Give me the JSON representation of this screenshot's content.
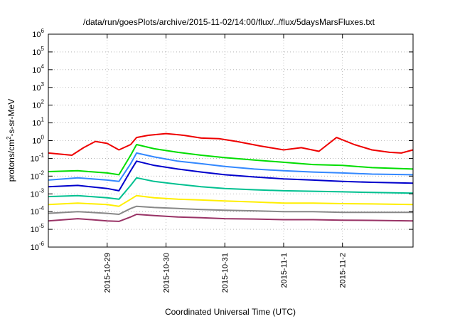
{
  "chart_data": {
    "type": "line",
    "title": "/data/run/goesPlots/archive/2015-11-02/14:00/flux/../flux/5daysMarsFluxes.txt",
    "xlabel": "Coordinated Universal Time (UTC)",
    "ylabel": "protons/cm2-s-sr-MeV",
    "ylabel_parts": {
      "pre": "protons/cm",
      "sup": "2",
      "post": "-s-sr-MeV"
    },
    "yscale": "log",
    "ylim": [
      1e-06,
      1000000.0
    ],
    "xlim_days": [
      0,
      6.2
    ],
    "y_ticks": [
      {
        "base": "10",
        "exp": "-6",
        "value": 1e-06
      },
      {
        "base": "10",
        "exp": "-5",
        "value": 1e-05
      },
      {
        "base": "10",
        "exp": "-4",
        "value": 0.0001
      },
      {
        "base": "10",
        "exp": "-3",
        "value": 0.001
      },
      {
        "base": "10",
        "exp": "-2",
        "value": 0.01
      },
      {
        "base": "10",
        "exp": "-1",
        "value": 0.1
      },
      {
        "base": "10",
        "exp": "0",
        "value": 1
      },
      {
        "base": "10",
        "exp": "1",
        "value": 10
      },
      {
        "base": "10",
        "exp": "2",
        "value": 100
      },
      {
        "base": "10",
        "exp": "3",
        "value": 1000
      },
      {
        "base": "10",
        "exp": "4",
        "value": 10000
      },
      {
        "base": "10",
        "exp": "5",
        "value": 100000
      },
      {
        "base": "10",
        "exp": "6",
        "value": 1000000
      }
    ],
    "x_ticks": [
      {
        "label": "2015-10-29",
        "day": 1.0
      },
      {
        "label": "2015-10-30",
        "day": 2.0
      },
      {
        "label": "2015-10-31",
        "day": 3.0
      },
      {
        "label": "2015-11-1",
        "day": 4.0
      },
      {
        "label": "2015-11-2",
        "day": 5.0
      }
    ],
    "grid": true,
    "series": [
      {
        "color": "#ee0000",
        "x": [
          0,
          0.4,
          0.6,
          0.8,
          1.0,
          1.2,
          1.4,
          1.5,
          1.7,
          2.0,
          2.3,
          2.6,
          2.9,
          3.2,
          3.6,
          4.0,
          4.3,
          4.6,
          4.9,
          5.2,
          5.5,
          5.8,
          6.0,
          6.2
        ],
        "y": [
          0.2,
          0.15,
          0.4,
          0.9,
          0.7,
          0.3,
          0.6,
          1.5,
          2.0,
          2.5,
          2.0,
          1.4,
          1.3,
          0.9,
          0.5,
          0.3,
          0.4,
          0.25,
          1.5,
          0.6,
          0.3,
          0.22,
          0.2,
          0.3
        ]
      },
      {
        "color": "#00dd00",
        "x": [
          0,
          0.5,
          1.0,
          1.2,
          1.4,
          1.5,
          1.8,
          2.2,
          2.6,
          3.0,
          3.5,
          4.0,
          4.5,
          5.0,
          5.5,
          6.2
        ],
        "y": [
          0.018,
          0.02,
          0.015,
          0.012,
          0.15,
          0.6,
          0.35,
          0.22,
          0.15,
          0.11,
          0.08,
          0.06,
          0.045,
          0.04,
          0.03,
          0.025
        ]
      },
      {
        "color": "#3388ff",
        "x": [
          0,
          0.5,
          1.0,
          1.2,
          1.4,
          1.5,
          1.8,
          2.2,
          2.6,
          3.0,
          3.5,
          4.0,
          4.5,
          5.0,
          5.5,
          6.2
        ],
        "y": [
          0.006,
          0.008,
          0.006,
          0.005,
          0.05,
          0.2,
          0.12,
          0.07,
          0.05,
          0.035,
          0.025,
          0.02,
          0.017,
          0.015,
          0.013,
          0.012
        ]
      },
      {
        "color": "#0000cc",
        "x": [
          0,
          0.5,
          1.0,
          1.2,
          1.4,
          1.5,
          1.8,
          2.2,
          2.6,
          3.0,
          3.5,
          4.0,
          4.5,
          5.0,
          5.5,
          6.2
        ],
        "y": [
          0.0025,
          0.003,
          0.002,
          0.0015,
          0.02,
          0.07,
          0.04,
          0.025,
          0.017,
          0.012,
          0.009,
          0.007,
          0.006,
          0.005,
          0.0045,
          0.004
        ]
      },
      {
        "color": "#00c090",
        "x": [
          0,
          0.5,
          1.0,
          1.2,
          1.4,
          1.5,
          1.8,
          2.2,
          2.6,
          3.0,
          3.5,
          4.0,
          4.5,
          5.0,
          5.5,
          6.2
        ],
        "y": [
          0.0007,
          0.0008,
          0.0006,
          0.0005,
          0.003,
          0.008,
          0.005,
          0.0035,
          0.0025,
          0.002,
          0.0017,
          0.0015,
          0.0014,
          0.0013,
          0.0012,
          0.0011
        ]
      },
      {
        "color": "#ffee00",
        "x": [
          0,
          0.5,
          1.0,
          1.2,
          1.4,
          1.5,
          1.8,
          2.2,
          2.6,
          3.0,
          3.5,
          4.0,
          4.5,
          5.0,
          5.5,
          6.2
        ],
        "y": [
          0.00025,
          0.0003,
          0.00025,
          0.0002,
          0.0005,
          0.0008,
          0.0006,
          0.0005,
          0.00045,
          0.0004,
          0.00035,
          0.0003,
          0.0003,
          0.00028,
          0.00027,
          0.00025
        ]
      },
      {
        "color": "#888888",
        "x": [
          0,
          0.5,
          1.0,
          1.2,
          1.4,
          1.5,
          1.8,
          2.2,
          2.6,
          3.0,
          3.5,
          4.0,
          4.5,
          5.0,
          5.5,
          6.2
        ],
        "y": [
          8e-05,
          0.0001,
          8e-05,
          7e-05,
          0.00015,
          0.0002,
          0.00017,
          0.00015,
          0.00013,
          0.00012,
          0.00011,
          0.0001,
          0.0001,
          9e-05,
          9e-05,
          9e-05
        ]
      },
      {
        "color": "#993366",
        "x": [
          0,
          0.5,
          1.0,
          1.2,
          1.4,
          1.5,
          1.8,
          2.2,
          2.6,
          3.0,
          3.5,
          4.0,
          4.5,
          5.0,
          5.5,
          6.2
        ],
        "y": [
          3e-05,
          4e-05,
          3e-05,
          2.8e-05,
          5e-05,
          7e-05,
          6e-05,
          5e-05,
          4.5e-05,
          4e-05,
          3.8e-05,
          3.5e-05,
          3.5e-05,
          3.3e-05,
          3.2e-05,
          3e-05
        ]
      }
    ]
  }
}
